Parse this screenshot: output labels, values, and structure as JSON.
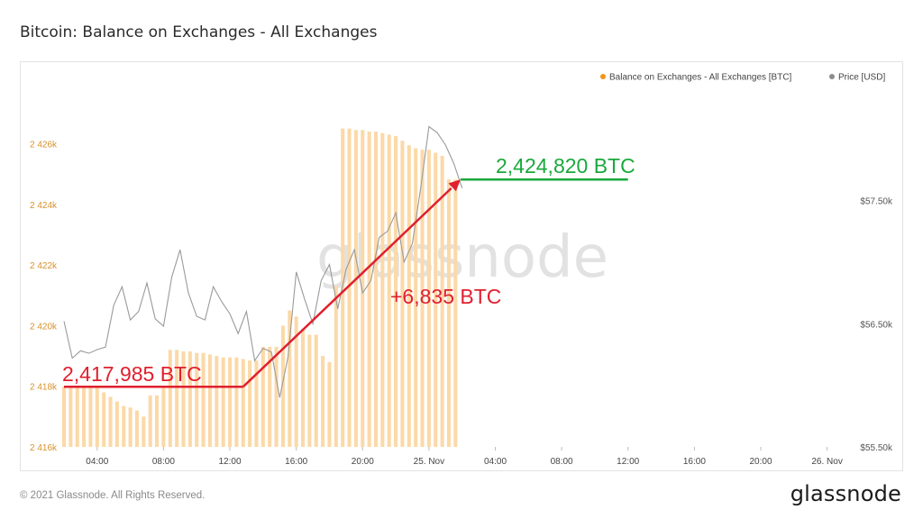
{
  "page": {
    "title": "Bitcoin: Balance on Exchanges - All Exchanges",
    "footer": "© 2021 Glassnode. All Rights Reserved.",
    "logo": "glassnode",
    "watermark": "glassnode"
  },
  "chart_data": {
    "type": "bar",
    "title": "Bitcoin: Balance on Exchanges - All Exchanges",
    "legend_position": "top-right",
    "grid": false,
    "x_ticks": [
      "04:00",
      "08:00",
      "12:00",
      "16:00",
      "20:00",
      "25. Nov",
      "04:00",
      "08:00",
      "12:00",
      "16:00",
      "20:00",
      "26. Nov"
    ],
    "x_tick_hours": [
      4,
      8,
      12,
      16,
      20,
      24,
      28,
      32,
      36,
      40,
      44,
      48
    ],
    "xlim_hours": [
      2,
      49
    ],
    "y_left": {
      "ticks": [
        "2 416k",
        "2 418k",
        "2 420k",
        "2 422k",
        "2 424k",
        "2 426k"
      ],
      "tick_values": [
        2416000,
        2418000,
        2420000,
        2422000,
        2424000,
        2426000
      ],
      "ylim": [
        2416000,
        2427500
      ]
    },
    "y_right": {
      "ticks": [
        "$55.50k",
        "$56.50k",
        "$57.50k"
      ],
      "tick_values": [
        55500,
        56500,
        57500
      ],
      "ylim": [
        55500,
        58330
      ]
    },
    "series": [
      {
        "name": "Balance on Exchanges - All Exchanges [BTC]",
        "type": "bar",
        "color": "#f7931a",
        "x_hours": [
          2.0,
          2.4,
          2.8,
          3.2,
          3.6,
          4.0,
          4.4,
          4.8,
          5.2,
          5.6,
          6.0,
          6.4,
          6.8,
          7.2,
          7.6,
          8.0,
          8.4,
          8.8,
          9.2,
          9.6,
          10.0,
          10.4,
          10.8,
          11.2,
          11.6,
          12.0,
          12.4,
          12.8,
          13.2,
          13.6,
          14.0,
          14.4,
          14.8,
          15.2,
          15.6,
          16.0,
          16.4,
          16.8,
          17.2,
          17.6,
          18.0,
          18.4,
          18.8,
          19.2,
          19.6,
          20.0,
          20.4,
          20.8,
          21.2,
          21.6,
          22.0,
          22.4,
          22.8,
          23.2,
          23.6,
          24.0,
          24.4,
          24.8,
          25.2,
          25.6
        ],
        "values": [
          2417985,
          2417985,
          2417985,
          2417985,
          2417950,
          2417950,
          2417800,
          2417650,
          2417500,
          2417350,
          2417300,
          2417200,
          2417000,
          2417700,
          2417700,
          2418000,
          2419200,
          2419200,
          2419150,
          2419150,
          2419100,
          2419100,
          2419050,
          2419000,
          2418950,
          2418950,
          2418950,
          2418900,
          2418850,
          2418850,
          2419300,
          2419300,
          2419300,
          2420000,
          2420500,
          2420300,
          2419900,
          2419700,
          2419700,
          2419000,
          2418800,
          2421300,
          2426500,
          2426500,
          2426450,
          2426450,
          2426400,
          2426400,
          2426350,
          2426300,
          2426250,
          2426100,
          2425950,
          2425850,
          2425800,
          2425800,
          2425700,
          2425600,
          2424820,
          2424820
        ]
      },
      {
        "name": "Price [USD]",
        "type": "line",
        "color": "#8c8c8c",
        "x_hours": [
          2.0,
          2.5,
          3.0,
          3.5,
          4.0,
          4.5,
          5.0,
          5.5,
          6.0,
          6.5,
          7.0,
          7.5,
          8.0,
          8.5,
          9.0,
          9.5,
          10.0,
          10.5,
          11.0,
          11.5,
          12.0,
          12.5,
          13.0,
          13.5,
          14.0,
          14.5,
          15.0,
          15.5,
          16.0,
          16.5,
          17.0,
          17.5,
          18.0,
          18.5,
          19.0,
          19.5,
          20.0,
          20.5,
          21.0,
          21.5,
          22.0,
          22.5,
          23.0,
          23.5,
          24.0,
          24.5,
          25.0,
          25.5,
          26.0
        ],
        "values": [
          56520,
          56220,
          56280,
          56260,
          56290,
          56310,
          56650,
          56800,
          56530,
          56600,
          56830,
          56540,
          56480,
          56880,
          57100,
          56750,
          56560,
          56530,
          56800,
          56680,
          56580,
          56420,
          56600,
          56200,
          56300,
          56270,
          55900,
          56230,
          56920,
          56700,
          56500,
          56850,
          56980,
          56620,
          56940,
          57100,
          56750,
          56850,
          57200,
          57250,
          57400,
          57000,
          57150,
          57600,
          58100,
          58050,
          57950,
          57800,
          57600
        ]
      }
    ],
    "annotations": [
      {
        "text": "2,417,985 BTC",
        "color": "#e0202e",
        "x_hours_range": [
          2.0,
          12.8
        ],
        "y": 2417985
      },
      {
        "text": "2,424,820 BTC",
        "color": "#1aa83c",
        "x_hours_range": [
          25.9,
          36.0
        ],
        "y": 2424820
      },
      {
        "text": "+6,835 BTC",
        "color": "#e0202e",
        "arrow_from": [
          12.8,
          2417985
        ],
        "arrow_to": [
          25.9,
          2424820
        ]
      }
    ]
  }
}
